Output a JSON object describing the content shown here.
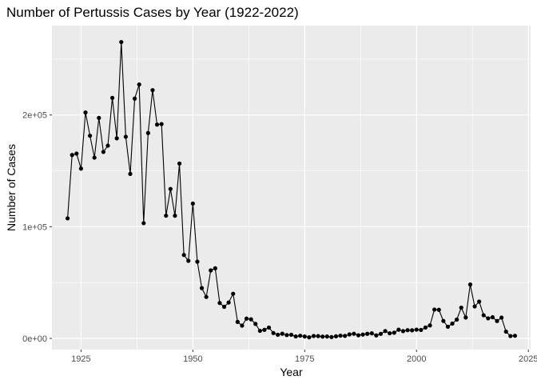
{
  "chart_data": {
    "type": "line",
    "title": "Number of Pertussis Cases by Year (1922-2022)",
    "xlabel": "Year",
    "ylabel": "Number of Cases",
    "xlim": [
      1918.5,
      2025.5
    ],
    "ylim": [
      -10000,
      280000
    ],
    "x_ticks": [
      1925,
      1950,
      1975,
      2000,
      2025
    ],
    "x_tick_labels": [
      "1925",
      "1950",
      "1975",
      "2000",
      "2025"
    ],
    "y_ticks": [
      0,
      100000,
      200000
    ],
    "y_tick_labels": [
      "0e+00",
      "1e+05",
      "2e+05"
    ],
    "grid": true,
    "series": [
      {
        "markers": true,
        "color": "#000000",
        "points": [
          [
            1922,
            107473
          ],
          [
            1923,
            164191
          ],
          [
            1924,
            165418
          ],
          [
            1925,
            152003
          ],
          [
            1926,
            202210
          ],
          [
            1927,
            181411
          ],
          [
            1928,
            161799
          ],
          [
            1929,
            197371
          ],
          [
            1930,
            166914
          ],
          [
            1931,
            172559
          ],
          [
            1932,
            215343
          ],
          [
            1933,
            179135
          ],
          [
            1934,
            265269
          ],
          [
            1935,
            180518
          ],
          [
            1936,
            147237
          ],
          [
            1937,
            214652
          ],
          [
            1938,
            227319
          ],
          [
            1939,
            103188
          ],
          [
            1940,
            183866
          ],
          [
            1941,
            222202
          ],
          [
            1942,
            191383
          ],
          [
            1943,
            191890
          ],
          [
            1944,
            109873
          ],
          [
            1945,
            133792
          ],
          [
            1946,
            109860
          ],
          [
            1947,
            156517
          ],
          [
            1948,
            74715
          ],
          [
            1949,
            69479
          ],
          [
            1950,
            120718
          ],
          [
            1951,
            68687
          ],
          [
            1952,
            45030
          ],
          [
            1953,
            37129
          ],
          [
            1954,
            60886
          ],
          [
            1955,
            62786
          ],
          [
            1956,
            31732
          ],
          [
            1957,
            28295
          ],
          [
            1958,
            32148
          ],
          [
            1959,
            40005
          ],
          [
            1960,
            14809
          ],
          [
            1961,
            11468
          ],
          [
            1962,
            17749
          ],
          [
            1963,
            17135
          ],
          [
            1964,
            13005
          ],
          [
            1965,
            6799
          ],
          [
            1966,
            7717
          ],
          [
            1967,
            9718
          ],
          [
            1968,
            4810
          ],
          [
            1969,
            3285
          ],
          [
            1970,
            4249
          ],
          [
            1971,
            3036
          ],
          [
            1972,
            3287
          ],
          [
            1973,
            1759
          ],
          [
            1974,
            2402
          ],
          [
            1975,
            1738
          ],
          [
            1976,
            1010
          ],
          [
            1977,
            2177
          ],
          [
            1978,
            2063
          ],
          [
            1979,
            1623
          ],
          [
            1980,
            1730
          ],
          [
            1981,
            1248
          ],
          [
            1982,
            1895
          ],
          [
            1983,
            2463
          ],
          [
            1984,
            2276
          ],
          [
            1985,
            3589
          ],
          [
            1986,
            4195
          ],
          [
            1987,
            2823
          ],
          [
            1988,
            3450
          ],
          [
            1989,
            4157
          ],
          [
            1990,
            4570
          ],
          [
            1991,
            2719
          ],
          [
            1992,
            4083
          ],
          [
            1993,
            6586
          ],
          [
            1994,
            4617
          ],
          [
            1995,
            5137
          ],
          [
            1996,
            7796
          ],
          [
            1997,
            6564
          ],
          [
            1998,
            7405
          ],
          [
            1999,
            7288
          ],
          [
            2000,
            7867
          ],
          [
            2001,
            7580
          ],
          [
            2002,
            9771
          ],
          [
            2003,
            11647
          ],
          [
            2004,
            25827
          ],
          [
            2005,
            25616
          ],
          [
            2006,
            15632
          ],
          [
            2007,
            10454
          ],
          [
            2008,
            13278
          ],
          [
            2009,
            16858
          ],
          [
            2010,
            27550
          ],
          [
            2011,
            18719
          ],
          [
            2012,
            48277
          ],
          [
            2013,
            28639
          ],
          [
            2014,
            32971
          ],
          [
            2015,
            20762
          ],
          [
            2016,
            17972
          ],
          [
            2017,
            18975
          ],
          [
            2018,
            15609
          ],
          [
            2019,
            18617
          ],
          [
            2020,
            6124
          ],
          [
            2021,
            2116
          ],
          [
            2022,
            2388
          ]
        ]
      }
    ]
  }
}
